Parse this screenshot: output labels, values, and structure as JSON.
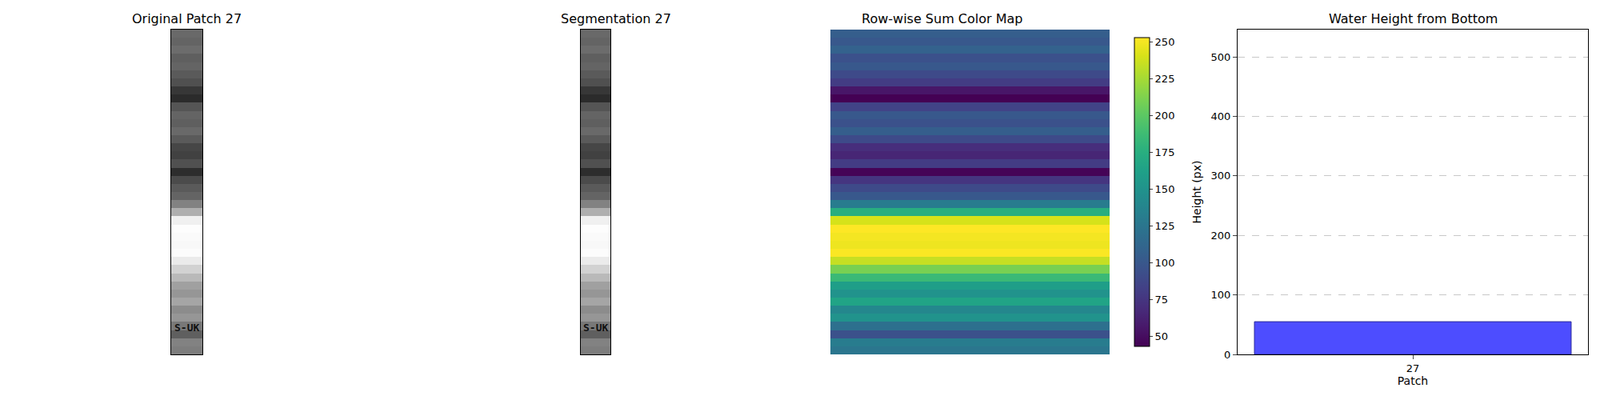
{
  "chart_data": [
    {
      "type": "image",
      "title": "Original Patch 27",
      "pixel_rows": [
        105,
        100,
        108,
        95,
        100,
        90,
        80,
        55,
        43,
        85,
        100,
        95,
        105,
        90,
        70,
        65,
        80,
        45,
        75,
        90,
        100,
        130,
        175,
        240,
        253,
        250,
        248,
        252,
        235,
        210,
        185,
        160,
        150,
        165,
        140,
        150,
        120,
        95,
        130,
        125
      ],
      "zlim": [
        0,
        255
      ],
      "image_text": "S-UK",
      "tick_labels": false
    },
    {
      "type": "image",
      "title": "Segmentation 27",
      "pixel_rows": [
        105,
        100,
        108,
        95,
        100,
        90,
        80,
        55,
        43,
        85,
        100,
        95,
        105,
        90,
        70,
        65,
        80,
        45,
        75,
        90,
        100,
        130,
        175,
        240,
        253,
        250,
        248,
        252,
        235,
        210,
        185,
        160,
        150,
        165,
        140,
        150,
        120,
        95,
        130,
        125
      ],
      "zlim": [
        0,
        255
      ],
      "image_text": "S-UK",
      "tick_labels": false
    },
    {
      "type": "heatmap",
      "title": "Row-wise Sum Color Map",
      "values": [
        105,
        100,
        108,
        95,
        100,
        90,
        80,
        55,
        43,
        85,
        100,
        95,
        105,
        90,
        70,
        65,
        80,
        45,
        75,
        90,
        100,
        130,
        175,
        240,
        253,
        250,
        248,
        252,
        235,
        210,
        185,
        160,
        150,
        165,
        140,
        150,
        120,
        95,
        130,
        125
      ],
      "colorbar_range": [
        43,
        253
      ],
      "colorbar_ticks": [
        50,
        75,
        100,
        125,
        150,
        175,
        200,
        225,
        250
      ],
      "tick_labels": false
    },
    {
      "type": "bar",
      "title": "Water Height from Bottom",
      "categories": [
        "27"
      ],
      "values": [
        55
      ],
      "color": "#4d4dff",
      "x_label": "Patch",
      "y_label": "Height (px)",
      "ylim": [
        0,
        546
      ],
      "yticks": [
        0,
        100,
        200,
        300,
        400,
        500
      ],
      "grid": true
    }
  ]
}
